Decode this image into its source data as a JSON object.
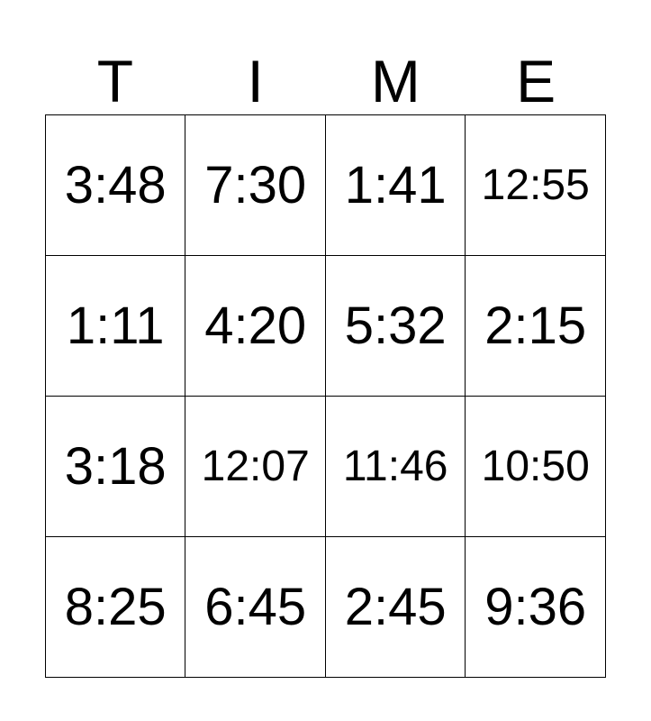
{
  "card": {
    "title": "TIME",
    "letters": [
      "T",
      "I",
      "M",
      "E"
    ],
    "rows": [
      [
        "3:48",
        "7:30",
        "1:41",
        "12:55"
      ],
      [
        "1:11",
        "4:20",
        "5:32",
        "2:15"
      ],
      [
        "3:18",
        "12:07",
        "11:46",
        "10:50"
      ],
      [
        "8:25",
        "6:45",
        "2:45",
        "9:36"
      ]
    ],
    "colors": {
      "background": "#ffffff",
      "text": "#000000",
      "grid_border": "#000000"
    }
  }
}
